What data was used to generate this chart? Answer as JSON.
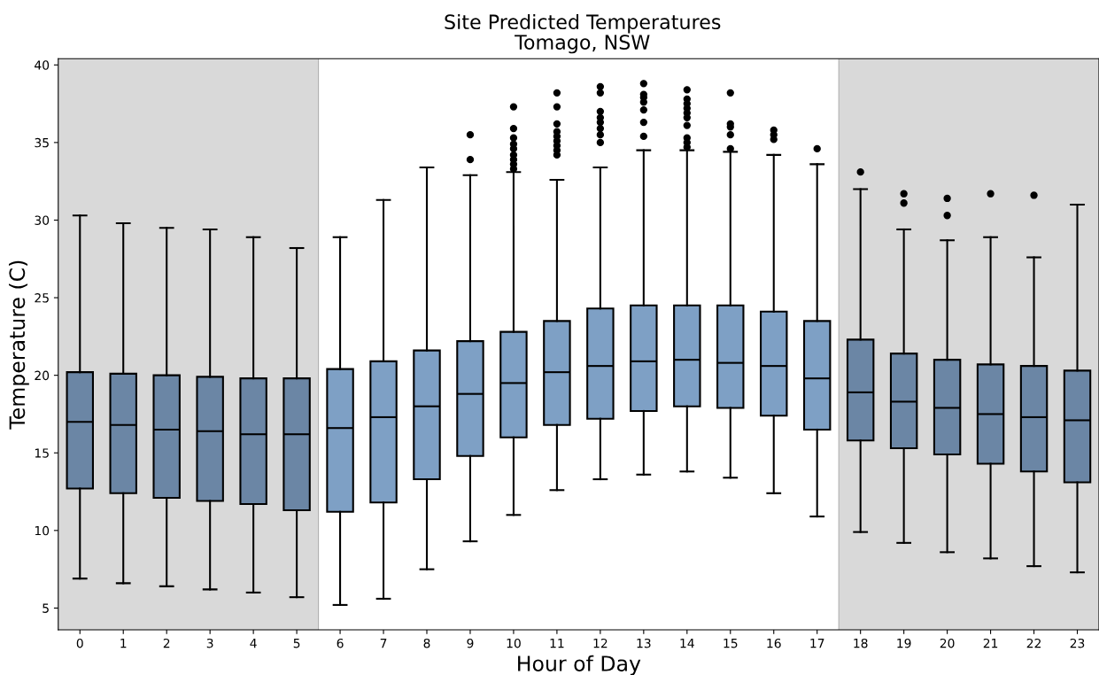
{
  "chart_data": {
    "type": "box",
    "title": "Site Predicted Temperatures",
    "subtitle": "Tomago, NSW",
    "xlabel": "Hour of Day",
    "ylabel": "Temperature (C)",
    "categories": [
      "0",
      "1",
      "2",
      "3",
      "4",
      "5",
      "6",
      "7",
      "8",
      "9",
      "10",
      "11",
      "12",
      "13",
      "14",
      "15",
      "16",
      "17",
      "18",
      "19",
      "20",
      "21",
      "22",
      "23"
    ],
    "colors": [
      "#6b86a5",
      "#6b86a5",
      "#6b86a5",
      "#6b86a5",
      "#6b86a5",
      "#6b86a5",
      "#7ea0c5",
      "#7ea0c5",
      "#7ea0c5",
      "#7ea0c5",
      "#7ea0c5",
      "#7ea0c5",
      "#7ea0c5",
      "#7ea0c5",
      "#7ea0c5",
      "#7ea0c5",
      "#7ea0c5",
      "#7ea0c5",
      "#6b86a5",
      "#6b86a5",
      "#6b86a5",
      "#6b86a5",
      "#6b86a5",
      "#6b86a5"
    ],
    "boxes": [
      {
        "low": 6.9,
        "q1": 12.7,
        "median": 17.0,
        "q3": 20.2,
        "high": 30.3
      },
      {
        "low": 6.6,
        "q1": 12.4,
        "median": 16.8,
        "q3": 20.1,
        "high": 29.8
      },
      {
        "low": 6.4,
        "q1": 12.1,
        "median": 16.5,
        "q3": 20.0,
        "high": 29.5
      },
      {
        "low": 6.2,
        "q1": 11.9,
        "median": 16.4,
        "q3": 19.9,
        "high": 29.4
      },
      {
        "low": 6.0,
        "q1": 11.7,
        "median": 16.2,
        "q3": 19.8,
        "high": 28.9
      },
      {
        "low": 5.7,
        "q1": 11.3,
        "median": 16.2,
        "q3": 19.8,
        "high": 28.2
      },
      {
        "low": 5.2,
        "q1": 11.2,
        "median": 16.6,
        "q3": 20.4,
        "high": 28.9
      },
      {
        "low": 5.6,
        "q1": 11.8,
        "median": 17.3,
        "q3": 20.9,
        "high": 31.3
      },
      {
        "low": 7.5,
        "q1": 13.3,
        "median": 18.0,
        "q3": 21.6,
        "high": 33.4
      },
      {
        "low": 9.3,
        "q1": 14.8,
        "median": 18.8,
        "q3": 22.2,
        "high": 32.9,
        "outliers": [
          33.9,
          35.5
        ]
      },
      {
        "low": 11.0,
        "q1": 16.0,
        "median": 19.5,
        "q3": 22.8,
        "high": 33.1,
        "outliers": [
          33.3,
          33.6,
          33.9,
          34.2,
          34.6,
          34.9,
          35.3,
          35.9,
          37.3
        ]
      },
      {
        "low": 12.6,
        "q1": 16.8,
        "median": 20.2,
        "q3": 23.5,
        "high": 32.6,
        "outliers": [
          34.2,
          34.5,
          34.8,
          35.1,
          35.4,
          35.7,
          36.2,
          37.3,
          38.2
        ]
      },
      {
        "low": 13.3,
        "q1": 17.2,
        "median": 20.6,
        "q3": 24.3,
        "high": 33.4,
        "outliers": [
          35.0,
          35.5,
          35.9,
          36.3,
          36.6,
          37.0,
          38.2,
          38.6
        ]
      },
      {
        "low": 13.6,
        "q1": 17.7,
        "median": 20.9,
        "q3": 24.5,
        "high": 34.5,
        "outliers": [
          35.4,
          36.3,
          37.1,
          37.6,
          37.9,
          38.1,
          38.8
        ]
      },
      {
        "low": 13.8,
        "q1": 18.0,
        "median": 21.0,
        "q3": 24.5,
        "high": 34.5,
        "outliers": [
          34.7,
          35.0,
          35.3,
          36.1,
          36.6,
          36.9,
          37.2,
          37.5,
          37.8,
          38.4
        ]
      },
      {
        "low": 13.4,
        "q1": 17.9,
        "median": 20.8,
        "q3": 24.5,
        "high": 34.4,
        "outliers": [
          34.6,
          35.5,
          36.0,
          36.2,
          38.2
        ]
      },
      {
        "low": 12.4,
        "q1": 17.4,
        "median": 20.6,
        "q3": 24.1,
        "high": 34.2,
        "outliers": [
          35.2,
          35.5,
          35.8
        ]
      },
      {
        "low": 10.9,
        "q1": 16.5,
        "median": 19.8,
        "q3": 23.5,
        "high": 33.6,
        "outliers": [
          34.6
        ]
      },
      {
        "low": 9.9,
        "q1": 15.8,
        "median": 18.9,
        "q3": 22.3,
        "high": 32.0,
        "outliers": [
          33.1
        ]
      },
      {
        "low": 9.2,
        "q1": 15.3,
        "median": 18.3,
        "q3": 21.4,
        "high": 29.4,
        "outliers": [
          31.1,
          31.7
        ]
      },
      {
        "low": 8.6,
        "q1": 14.9,
        "median": 17.9,
        "q3": 21.0,
        "high": 28.7,
        "outliers": [
          30.3,
          31.4
        ]
      },
      {
        "low": 8.2,
        "q1": 14.3,
        "median": 17.5,
        "q3": 20.7,
        "high": 28.9,
        "outliers": [
          31.7
        ]
      },
      {
        "low": 7.7,
        "q1": 13.8,
        "median": 17.3,
        "q3": 20.6,
        "high": 27.6,
        "outliers": [
          31.6
        ]
      },
      {
        "low": 7.3,
        "q1": 13.1,
        "median": 17.1,
        "q3": 20.3,
        "high": 31.0
      }
    ],
    "ylim": [
      3.6,
      40.4
    ],
    "yticks": [
      5,
      10,
      15,
      20,
      25,
      30,
      35,
      40
    ],
    "bands": [
      {
        "axis": "x",
        "from": "0",
        "to": "5",
        "color": "#d9d9d9"
      },
      {
        "axis": "x",
        "from": "18",
        "to": "23",
        "color": "#d9d9d9"
      }
    ],
    "grid": false
  }
}
